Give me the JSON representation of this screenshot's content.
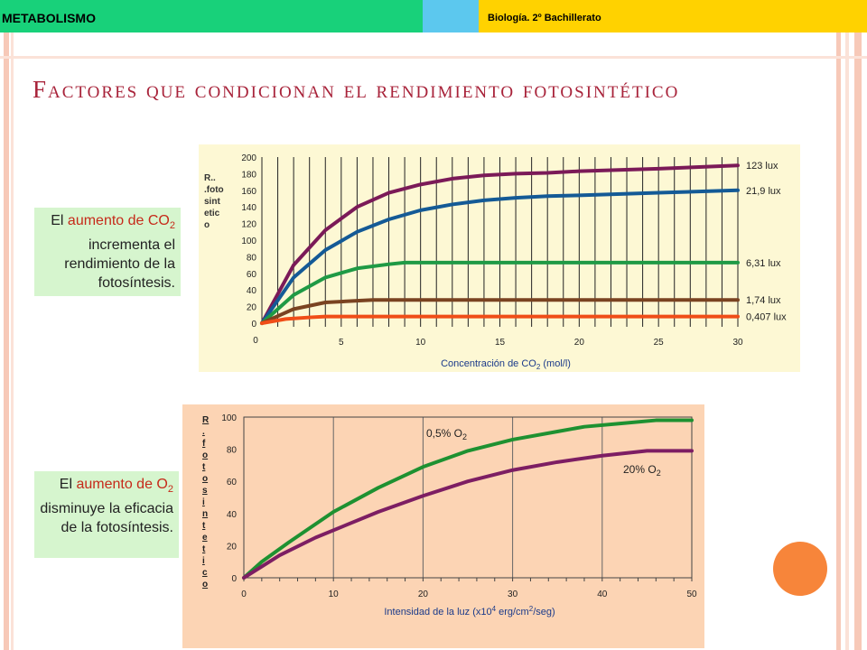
{
  "header": {
    "left_label": "METABOLISMO",
    "right_label": "Biología. 2º Bachillerato"
  },
  "title": "Factores  que condicionan el rendimiento fotosintético",
  "note1": {
    "pre": "El ",
    "hl": "aumento de CO",
    "hl_sub": "2",
    "post": " incrementa el rendimiento de la fotosíntesis."
  },
  "note2": {
    "pre": "El ",
    "hl": "aumento de O",
    "hl_sub": "2",
    "post": " disminuye la eficacia de la fotosíntesis."
  },
  "colors": {
    "dark_purple": "#7b1a58",
    "blue": "#145a96",
    "green": "#1f9a45",
    "brown": "#7a4321",
    "orange": "#f04d17",
    "green2": "#1e9131",
    "purple2": "#7d1e63"
  },
  "chart_data": [
    {
      "type": "line",
      "ylabel": "R.. .foto sint etic o",
      "xlabel": "Concentración de CO",
      "xlabel_sub": "2",
      "xlabel_unit": " (mol/l)",
      "xlim": [
        0,
        30
      ],
      "ylim": [
        0,
        200
      ],
      "x_ticks": [
        5,
        10,
        15,
        20,
        25,
        30
      ],
      "x_zero_label": "0",
      "y_ticks": [
        0,
        20,
        40,
        60,
        80,
        100,
        120,
        140,
        160,
        180,
        200
      ],
      "grid": "vertical",
      "series": [
        {
          "name": "123 lux",
          "color": "#7b1a58",
          "x": [
            0,
            2,
            4,
            6,
            8,
            10,
            12,
            14,
            16,
            18,
            20,
            25,
            30
          ],
          "y": [
            0,
            70,
            112,
            140,
            157,
            167,
            174,
            178,
            180,
            181,
            183,
            186,
            190
          ]
        },
        {
          "name": "21,9 lux",
          "color": "#145a96",
          "x": [
            0,
            2,
            4,
            6,
            8,
            10,
            12,
            14,
            16,
            18,
            20,
            25,
            30
          ],
          "y": [
            0,
            55,
            88,
            110,
            125,
            136,
            143,
            148,
            151,
            153,
            154,
            157,
            160
          ]
        },
        {
          "name": "6,31 lux",
          "color": "#1f9a45",
          "x": [
            0,
            2,
            4,
            6,
            8,
            9,
            10,
            15,
            20,
            25,
            30
          ],
          "y": [
            0,
            34,
            55,
            66,
            71,
            73,
            73,
            73,
            73,
            73,
            73
          ]
        },
        {
          "name": "1,74 lux",
          "color": "#7a4321",
          "x": [
            0,
            2,
            4,
            6,
            7,
            10,
            15,
            20,
            25,
            30
          ],
          "y": [
            0,
            17,
            25,
            27,
            28,
            28,
            28,
            28,
            28,
            28
          ]
        },
        {
          "name": "0,407 lux",
          "color": "#f04d17",
          "x": [
            0,
            1.5,
            3,
            4,
            5,
            10,
            15,
            20,
            25,
            30
          ],
          "y": [
            0,
            5,
            7,
            8,
            8,
            8,
            8,
            8,
            8,
            8
          ]
        }
      ]
    },
    {
      "type": "line",
      "ylabel": "R . f o t o s i n t e t i c o",
      "xlabel": "Intensidad de la luz (x10",
      "xlabel_sup": "4",
      "xlabel_mid": " erg/cm",
      "xlabel_sup2": "2",
      "xlabel_end": "/seg)",
      "xlim": [
        0,
        50
      ],
      "ylim": [
        0,
        100
      ],
      "x_ticks": [
        0,
        10,
        20,
        30,
        40,
        50
      ],
      "y_ticks": [
        0,
        20,
        40,
        60,
        80,
        100
      ],
      "grid": "vertical",
      "series": [
        {
          "name": "0,5% O",
          "name_sub": "2",
          "color": "#1e9131",
          "x": [
            0,
            2,
            5,
            10,
            15,
            20,
            25,
            30,
            35,
            38,
            42,
            46,
            50
          ],
          "y": [
            0,
            10,
            22,
            41,
            56,
            69,
            79,
            86,
            91,
            94,
            96,
            98,
            98
          ]
        },
        {
          "name": "20% O",
          "name_sub": "2",
          "color": "#7d1e63",
          "x": [
            0,
            2,
            4,
            8,
            15,
            20,
            25,
            30,
            35,
            40,
            45,
            50
          ],
          "y": [
            0,
            7,
            14,
            25,
            41,
            51,
            60,
            67,
            72,
            76,
            79,
            79
          ]
        }
      ]
    }
  ]
}
